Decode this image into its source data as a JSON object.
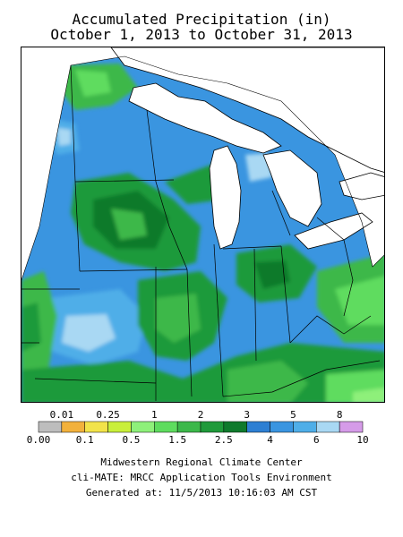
{
  "title": {
    "line1": "Accumulated Precipitation (in)",
    "line2": "October 1, 2013 to October 31, 2013"
  },
  "legend": {
    "top_labels": [
      "0.01",
      "0.25",
      "1",
      "2",
      "3",
      "5",
      "8"
    ],
    "bottom_labels": [
      "0.00",
      "0.1",
      "0.5",
      "1.5",
      "2.5",
      "4",
      "6",
      "10"
    ],
    "bins": [
      {
        "range": "0.00-0.01",
        "color": "#bdbdbd"
      },
      {
        "range": "0.01-0.1",
        "color": "#f2b13c"
      },
      {
        "range": "0.1-0.25",
        "color": "#f2e34a"
      },
      {
        "range": "0.25-0.5",
        "color": "#c9ef3a"
      },
      {
        "range": "0.5-1",
        "color": "#8ef07a"
      },
      {
        "range": "1-1.5",
        "color": "#5edc5e"
      },
      {
        "range": "1.5-2",
        "color": "#3cb84a"
      },
      {
        "range": "2-2.5",
        "color": "#1f9a3a"
      },
      {
        "range": "2.5-3",
        "color": "#0f7a2c"
      },
      {
        "range": "3-4",
        "color": "#2d7fd3"
      },
      {
        "range": "4-5",
        "color": "#3a95e0"
      },
      {
        "range": "5-6",
        "color": "#4faee8"
      },
      {
        "range": "6-8",
        "color": "#a9d8f3"
      },
      {
        "range": "8-10",
        "color": "#d59be8"
      }
    ]
  },
  "credits": {
    "line1": "Midwestern Regional Climate Center",
    "line2": "cli-MATE: MRCC Application Tools Environment",
    "line3": "Generated at: 11/5/2013 10:16:03 AM CST"
  },
  "colors": {
    "water": "#ffffff",
    "outline": "#000000",
    "base_blue": "#3a95e0"
  }
}
